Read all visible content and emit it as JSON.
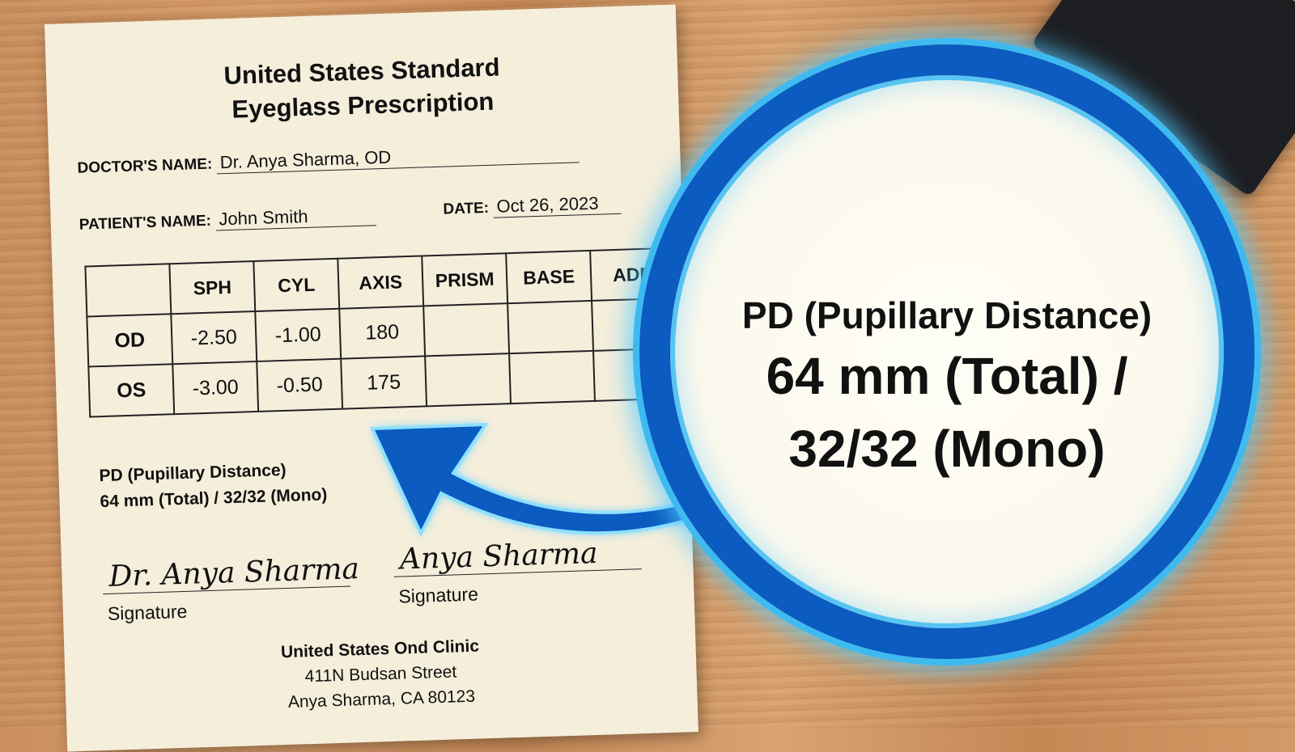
{
  "document": {
    "title_line1": "United States Standard",
    "title_line2": "Eyeglass Prescription",
    "doctor_label": "DOCTOR'S NAME:",
    "doctor_value": "Dr. Anya Sharma, OD",
    "patient_label": "PATIENT'S NAME:",
    "patient_value": "John Smith",
    "date_label": "DATE:",
    "date_value": "Oct 26, 2023",
    "table": {
      "headers": [
        "",
        "SPH",
        "CYL",
        "AXIS",
        "PRISM",
        "BASE",
        "ADD"
      ],
      "rows": [
        [
          "OD",
          "-2.50",
          "-1.00",
          "180",
          "",
          "",
          ""
        ],
        [
          "OS",
          "-3.00",
          "-0.50",
          "175",
          "",
          "",
          ""
        ]
      ]
    },
    "pd_line1": "PD (Pupillary Distance)",
    "pd_line2": "64 mm (Total) / 32/32 (Mono)",
    "signature1": "Dr. Anya Sharma",
    "signature2": "Anya Sharma",
    "signature_label": "Signature",
    "clinic_name": "United States Ond Clinic",
    "clinic_street": "411N Budsan Street",
    "clinic_city": "Anya Sharma, CA 80123"
  },
  "magnifier": {
    "line1": "PD (Pupillary Distance)",
    "line2": "64 mm (Total) /",
    "line3": "32/32 (Mono)",
    "ring_color": "#0b5bc0",
    "glow_color": "#3fbaf0"
  }
}
